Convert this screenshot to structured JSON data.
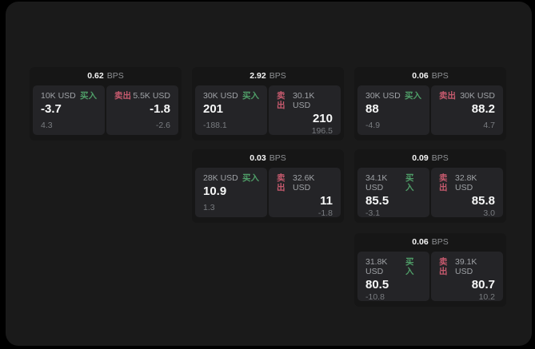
{
  "theme": {
    "page_bg": "#000000",
    "surface_bg": "#1a1a1a",
    "card_bg": "#161616",
    "panel_bg": "#242427",
    "buy_color": "#4f9e68",
    "sell_color": "#c65a6e"
  },
  "labels": {
    "bps_unit": "BPS",
    "buy": "买入",
    "sell": "卖出"
  },
  "cards": [
    {
      "col": 0,
      "row": 0,
      "bps": "0.62",
      "buy": {
        "amount": "10K USD",
        "value": "-3.7",
        "delta": "4.3"
      },
      "sell": {
        "amount": "5.5K USD",
        "value": "-1.8",
        "delta": "-2.6"
      }
    },
    {
      "col": 1,
      "row": 0,
      "bps": "2.92",
      "buy": {
        "amount": "30K USD",
        "value": "201",
        "delta": "-188.1"
      },
      "sell": {
        "amount": "30.1K USD",
        "value": "210",
        "delta": "196.5"
      }
    },
    {
      "col": 2,
      "row": 0,
      "bps": "0.06",
      "buy": {
        "amount": "30K USD",
        "value": "88",
        "delta": "-4.9"
      },
      "sell": {
        "amount": "30K USD",
        "value": "88.2",
        "delta": "4.7"
      }
    },
    {
      "col": 1,
      "row": 1,
      "bps": "0.03",
      "buy": {
        "amount": "28K USD",
        "value": "10.9",
        "delta": "1.3"
      },
      "sell": {
        "amount": "32.6K USD",
        "value": "11",
        "delta": "-1.8"
      }
    },
    {
      "col": 2,
      "row": 1,
      "bps": "0.09",
      "buy": {
        "amount": "34.1K USD",
        "value": "85.5",
        "delta": "-3.1"
      },
      "sell": {
        "amount": "32.8K USD",
        "value": "85.8",
        "delta": "3.0"
      }
    },
    {
      "col": 2,
      "row": 2,
      "bps": "0.06",
      "buy": {
        "amount": "31.8K USD",
        "value": "80.5",
        "delta": "-10.8"
      },
      "sell": {
        "amount": "39.1K USD",
        "value": "80.7",
        "delta": "10.2"
      }
    }
  ]
}
